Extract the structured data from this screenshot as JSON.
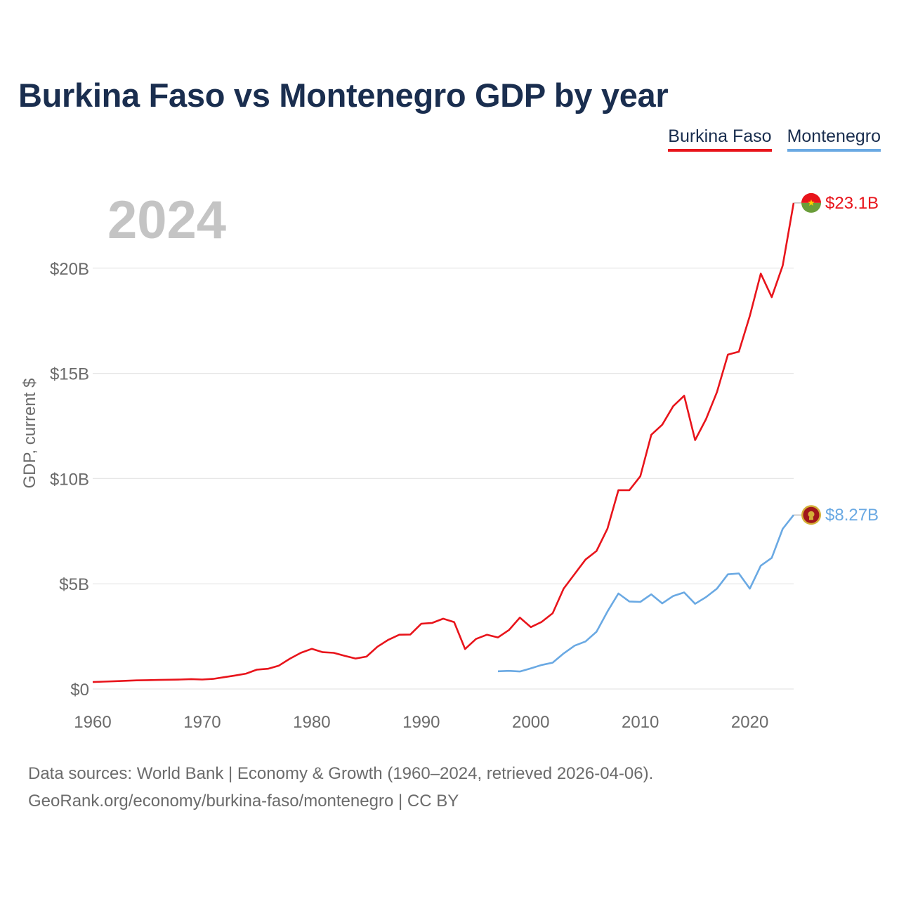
{
  "chart_data": {
    "type": "line",
    "title": "Burkina Faso vs Montenegro GDP by year",
    "year_label": "2024",
    "ylabel": "GDP, current $",
    "xlabel": "",
    "xlim": [
      1960,
      2024
    ],
    "ylim": [
      0,
      25
    ],
    "x_ticks": [
      1960,
      1970,
      1980,
      1990,
      2000,
      2010,
      2020
    ],
    "y_ticks": [
      {
        "value": 0,
        "label": "$0"
      },
      {
        "value": 5,
        "label": "$5B"
      },
      {
        "value": 10,
        "label": "$10B"
      },
      {
        "value": 15,
        "label": "$15B"
      },
      {
        "value": 20,
        "label": "$20B"
      }
    ],
    "grid": true,
    "legend_position": "top-right",
    "series": [
      {
        "name": "Burkina Faso",
        "color": "#e8141b",
        "end_label": "$23.1B",
        "start_year": 1960,
        "values": [
          0.33,
          0.35,
          0.37,
          0.39,
          0.41,
          0.42,
          0.43,
          0.44,
          0.45,
          0.47,
          0.45,
          0.48,
          0.56,
          0.64,
          0.73,
          0.92,
          0.96,
          1.11,
          1.44,
          1.72,
          1.91,
          1.75,
          1.72,
          1.58,
          1.45,
          1.54,
          2.01,
          2.34,
          2.58,
          2.59,
          3.1,
          3.14,
          3.34,
          3.18,
          1.9,
          2.38,
          2.58,
          2.45,
          2.8,
          3.39,
          2.94,
          3.19,
          3.6,
          4.77,
          5.46,
          6.15,
          6.56,
          7.62,
          9.45,
          9.45,
          10.11,
          12.08,
          12.56,
          13.44,
          13.94,
          11.83,
          12.83,
          14.11,
          15.89,
          16.03,
          17.73,
          19.74,
          18.62,
          20.12,
          23.1
        ]
      },
      {
        "name": "Montenegro",
        "color": "#6aa9e3",
        "end_label": "$8.27B",
        "start_year": 1997,
        "values": [
          0.84,
          0.86,
          0.83,
          0.98,
          1.14,
          1.25,
          1.69,
          2.06,
          2.26,
          2.72,
          3.68,
          4.54,
          4.16,
          4.14,
          4.5,
          4.07,
          4.42,
          4.59,
          4.05,
          4.37,
          4.77,
          5.45,
          5.49,
          4.77,
          5.86,
          6.23,
          7.61,
          8.27
        ]
      }
    ]
  },
  "legend": {
    "items": [
      {
        "label": "Burkina Faso",
        "color": "#e8141b"
      },
      {
        "label": "Montenegro",
        "color": "#6aa9e3"
      }
    ]
  },
  "footer": {
    "line1": "Data sources: World Bank | Economy & Growth (1960–2024, retrieved 2026-04-06).",
    "line2": "GeoRank.org/economy/burkina-faso/montenegro | CC BY"
  },
  "colors": {
    "title": "#1a2e4f",
    "axis_text": "#6b6b6b",
    "grid": "#e6e6e6",
    "year_watermark": "#c4c4c4"
  },
  "flags": {
    "burkina_faso": [
      "#e8141b",
      "#6a9d3a",
      "#ffd100"
    ],
    "montenegro": [
      "#a0161c",
      "#d4af37"
    ]
  }
}
